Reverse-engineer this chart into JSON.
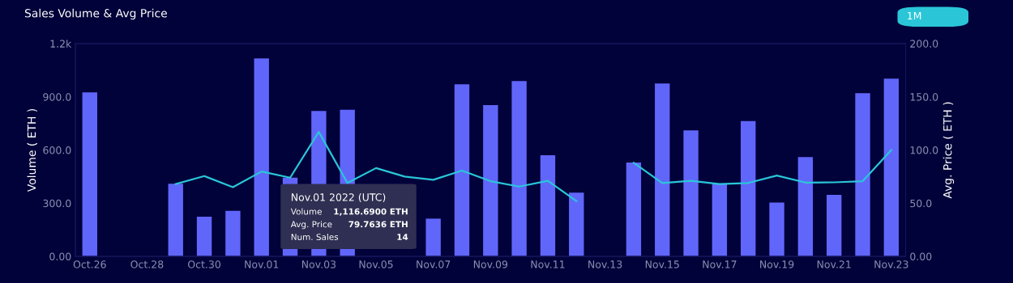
{
  "chart_data": {
    "type": "bar",
    "title": "Sales Volume & Avg Price",
    "categories": [
      "Oct.26",
      null,
      "Oct.28",
      null,
      "Oct.30",
      null,
      "Nov.01",
      null,
      "Nov.03",
      null,
      "Nov.05",
      null,
      "Nov.07",
      null,
      "Nov.09",
      null,
      "Nov.11",
      null,
      "Nov.13",
      null,
      "Nov.15",
      null,
      "Nov.17",
      null,
      "Nov.19",
      null,
      "Nov.21",
      null,
      "Nov.23"
    ],
    "series": [
      {
        "color": "#6166fb",
        "values": [
          925,
          null,
          null,
          410,
          224,
          257,
          1116.69,
          444,
          820,
          827,
          null,
          null,
          213,
          970,
          853,
          989,
          570,
          359,
          null,
          529,
          975,
          710,
          408,
          763,
          304,
          560,
          347,
          920,
          1002
        ]
      },
      {
        "type": "line",
        "axis": "y2",
        "color": "#2ac6d8",
        "marker": "none",
        "line_style": "solid",
        "values": [
          null,
          null,
          null,
          68,
          75.5,
          65,
          79.7636,
          74,
          117,
          69,
          83,
          75,
          72,
          80.6,
          70.7,
          65.6,
          71,
          52,
          null,
          88,
          69,
          71,
          68,
          69,
          76,
          69.4,
          69.6,
          70.7,
          100
        ]
      }
    ],
    "ylabel": "Volume ( ETH )",
    "y2label": "Avg. Price ( ETH )",
    "ylim": [
      0,
      1200
    ],
    "yticks": [
      {
        "value": 0,
        "label": "0.00"
      },
      {
        "value": 300,
        "label": "300.0"
      },
      {
        "value": 600,
        "label": "600.0"
      },
      {
        "value": 900,
        "label": "900.0"
      },
      {
        "value": 1200,
        "label": "1.2k"
      }
    ],
    "y2lim": [
      0,
      200
    ],
    "y2ticks": [
      {
        "value": 0,
        "label": "0.00"
      },
      {
        "value": 50,
        "label": "50.0"
      },
      {
        "value": 100,
        "label": "100.0"
      },
      {
        "value": 150,
        "label": "150.0"
      },
      {
        "value": 200,
        "label": "200.0"
      }
    ],
    "grid": false,
    "annotations": [
      "1M",
      "Nov.01 2022 (UTC)",
      "Volume",
      "1,116.6900 ETH",
      "Avg. Price",
      "79.7636 ETH",
      "Num. Sales",
      "14"
    ]
  }
}
